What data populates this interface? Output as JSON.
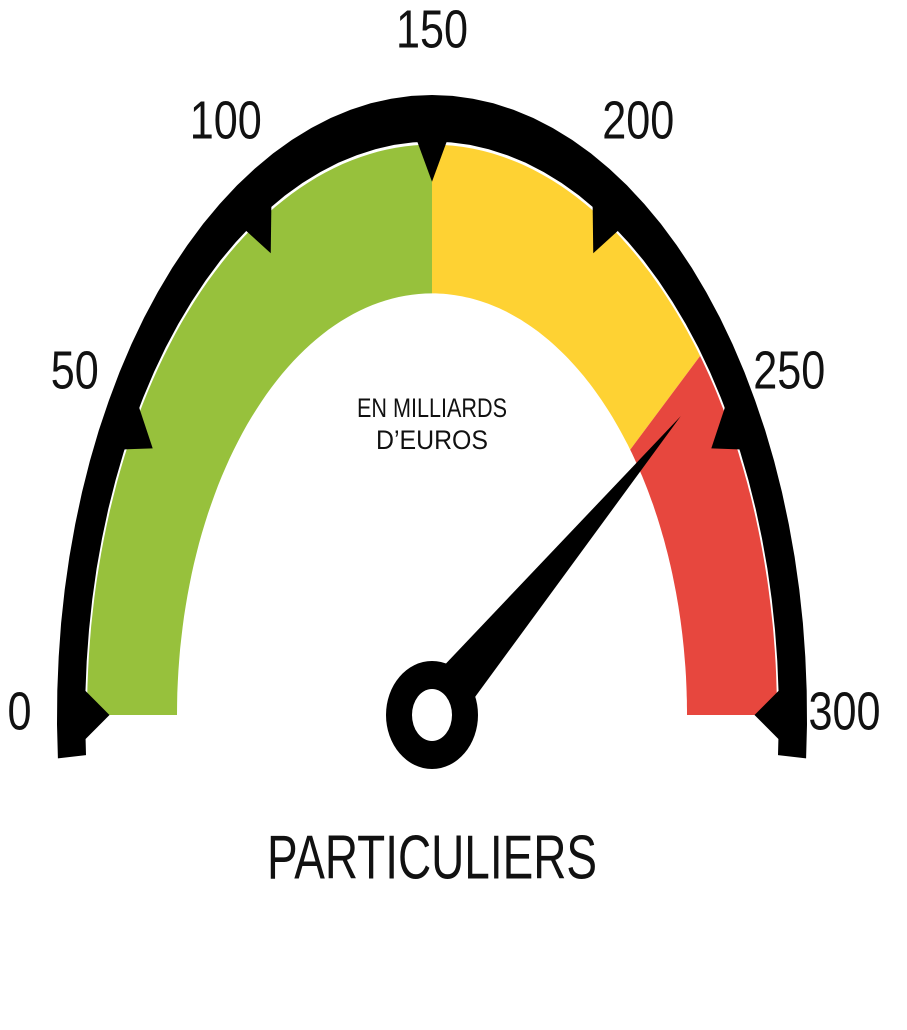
{
  "chart_data": {
    "type": "gauge",
    "title": "PARTICULIERS",
    "subtitle": [
      "EN MILLIARDS",
      "D’EUROS"
    ],
    "value": 240,
    "ylim": [
      0,
      300
    ],
    "yticks": [
      0,
      50,
      100,
      150,
      200,
      250,
      300
    ],
    "bands": [
      {
        "from": 0,
        "to": 150,
        "color": "#97c13c"
      },
      {
        "from": 150,
        "to": 235,
        "color": "#fed233"
      },
      {
        "from": 235,
        "to": 300,
        "color": "#e7473e"
      }
    ],
    "ring_color": "#000000",
    "needle_color": "#000000"
  }
}
